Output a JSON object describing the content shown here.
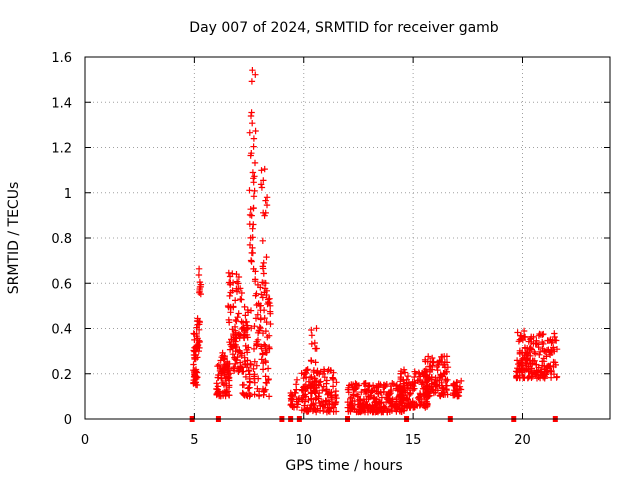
{
  "chart_data": {
    "type": "scatter",
    "title": "Day 007 of 2024, SRMTID for receiver gamb",
    "xlabel": "GPS time / hours",
    "ylabel": "SRMTID / TECUs",
    "xlim": [
      0,
      24
    ],
    "ylim": [
      0,
      1.6
    ],
    "xticks": [
      0,
      5,
      10,
      15,
      20
    ],
    "xtick_labels": [
      "0",
      "5",
      "10",
      "15",
      "20"
    ],
    "yticks": [
      0,
      0.2,
      0.4,
      0.6,
      0.8,
      1.0,
      1.2,
      1.4,
      1.6
    ],
    "ytick_labels": [
      "0",
      "0.2",
      "0.4",
      "0.6",
      "0.8",
      "1",
      "1.2",
      "1.4",
      "1.6"
    ],
    "grid": true,
    "marker": "+",
    "color": "#ff0000",
    "markers_at_zero": [
      4.9,
      6.1,
      9.0,
      9.4,
      9.8,
      12.0,
      14.7,
      16.7,
      19.6,
      21.5
    ],
    "clusters": [
      {
        "x_start": 4.95,
        "x_end": 5.15,
        "y_min": 0.15,
        "y_max": 0.38,
        "count": 45
      },
      {
        "x_start": 5.1,
        "x_end": 5.25,
        "y_min": 0.3,
        "y_max": 0.45,
        "count": 20
      },
      {
        "x_start": 5.2,
        "x_end": 5.3,
        "y_min": 0.55,
        "y_max": 0.7,
        "count": 10
      },
      {
        "x_start": 6.0,
        "x_end": 6.6,
        "y_min": 0.1,
        "y_max": 0.3,
        "count": 80
      },
      {
        "x_start": 6.5,
        "x_end": 7.2,
        "y_min": 0.2,
        "y_max": 0.65,
        "count": 90
      },
      {
        "x_start": 7.2,
        "x_end": 7.6,
        "y_min": 0.1,
        "y_max": 0.5,
        "count": 60
      },
      {
        "x_start": 7.5,
        "x_end": 7.8,
        "y_min": 0.6,
        "y_max": 1.6,
        "count": 40
      },
      {
        "x_start": 7.7,
        "x_end": 8.5,
        "y_min": 0.1,
        "y_max": 0.6,
        "count": 90
      },
      {
        "x_start": 8.0,
        "x_end": 8.4,
        "y_min": 0.6,
        "y_max": 1.15,
        "count": 20
      },
      {
        "x_start": 9.4,
        "x_end": 9.8,
        "y_min": 0.05,
        "y_max": 0.18,
        "count": 30
      },
      {
        "x_start": 9.9,
        "x_end": 11.5,
        "y_min": 0.03,
        "y_max": 0.22,
        "count": 160
      },
      {
        "x_start": 10.3,
        "x_end": 10.6,
        "y_min": 0.25,
        "y_max": 0.41,
        "count": 10
      },
      {
        "x_start": 12.0,
        "x_end": 14.6,
        "y_min": 0.03,
        "y_max": 0.16,
        "count": 260
      },
      {
        "x_start": 14.4,
        "x_end": 15.7,
        "y_min": 0.05,
        "y_max": 0.22,
        "count": 130
      },
      {
        "x_start": 15.5,
        "x_end": 16.6,
        "y_min": 0.1,
        "y_max": 0.28,
        "count": 110
      },
      {
        "x_start": 16.8,
        "x_end": 17.2,
        "y_min": 0.1,
        "y_max": 0.17,
        "count": 30
      },
      {
        "x_start": 19.7,
        "x_end": 21.6,
        "y_min": 0.18,
        "y_max": 0.39,
        "count": 200
      }
    ]
  }
}
